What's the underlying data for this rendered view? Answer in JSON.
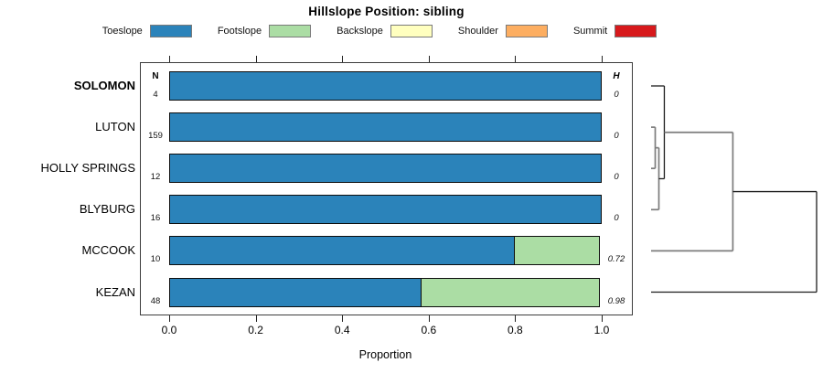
{
  "title": "Hillslope Position: sibling",
  "legend": [
    {
      "label": "Toeslope",
      "color": "#2B83BA"
    },
    {
      "label": "Footslope",
      "color": "#ABDDA4"
    },
    {
      "label": "Backslope",
      "color": "#FFFFBF"
    },
    {
      "label": "Shoulder",
      "color": "#FDAE61"
    },
    {
      "label": "Summit",
      "color": "#D7191C"
    }
  ],
  "chart_data": {
    "type": "bar",
    "orientation": "horizontal-stacked",
    "title": "Hillslope Position: sibling",
    "xlabel": "Proportion",
    "xlim": [
      0,
      1
    ],
    "xticks": [
      0,
      0.2,
      0.4,
      0.6,
      0.8,
      1
    ],
    "xtick_labels": [
      "0.0",
      "0.2",
      "0.4",
      "0.6",
      "0.8",
      "1.0"
    ],
    "categories": [
      "SOLOMON",
      "LUTON",
      "HOLLY SPRINGS",
      "BLYBURG",
      "MCCOOK",
      "KEZAN"
    ],
    "emphasized_category": "SOLOMON",
    "n_header": "N",
    "h_header": "H",
    "n_values": [
      "4",
      "159",
      "12",
      "16",
      "10",
      "48"
    ],
    "h_values": [
      "0",
      "0",
      "0",
      "0",
      "0.72",
      "0.98"
    ],
    "series": [
      {
        "name": "Toeslope",
        "color": "#2B83BA",
        "values": [
          1,
          1,
          1,
          1,
          0.8,
          0.585
        ]
      },
      {
        "name": "Footslope",
        "color": "#ABDDA4",
        "values": [
          0,
          0,
          0,
          0,
          0.2,
          0.415
        ]
      },
      {
        "name": "Backslope",
        "color": "#FFFFBF",
        "values": [
          0,
          0,
          0,
          0,
          0,
          0
        ]
      },
      {
        "name": "Shoulder",
        "color": "#FDAE61",
        "values": [
          0,
          0,
          0,
          0,
          0,
          0
        ]
      },
      {
        "name": "Summit",
        "color": "#D7191C",
        "values": [
          0,
          0,
          0,
          0,
          0,
          0
        ]
      }
    ],
    "dendrogram": {
      "merges": [
        {
          "a": "LUTON",
          "b": "HOLLY SPRINGS",
          "height": 0.025,
          "color": "#7c7c7c",
          "stroke": 1.7
        },
        {
          "a": "m0",
          "b": "BLYBURG",
          "height": 0.047,
          "color": "#7c7c7c",
          "stroke": 1.7
        },
        {
          "a": "SOLOMON",
          "b": "m1",
          "height": 0.08,
          "color": "#1c1c1c",
          "stroke": 1.3
        },
        {
          "a": "m2",
          "b": "MCCOOK",
          "height": 0.494,
          "color": "#7c7c7c",
          "stroke": 1.7
        },
        {
          "a": "m3",
          "b": "KEZAN",
          "height": 1.0,
          "color": "#1c1c1c",
          "stroke": 1.3
        }
      ]
    }
  }
}
